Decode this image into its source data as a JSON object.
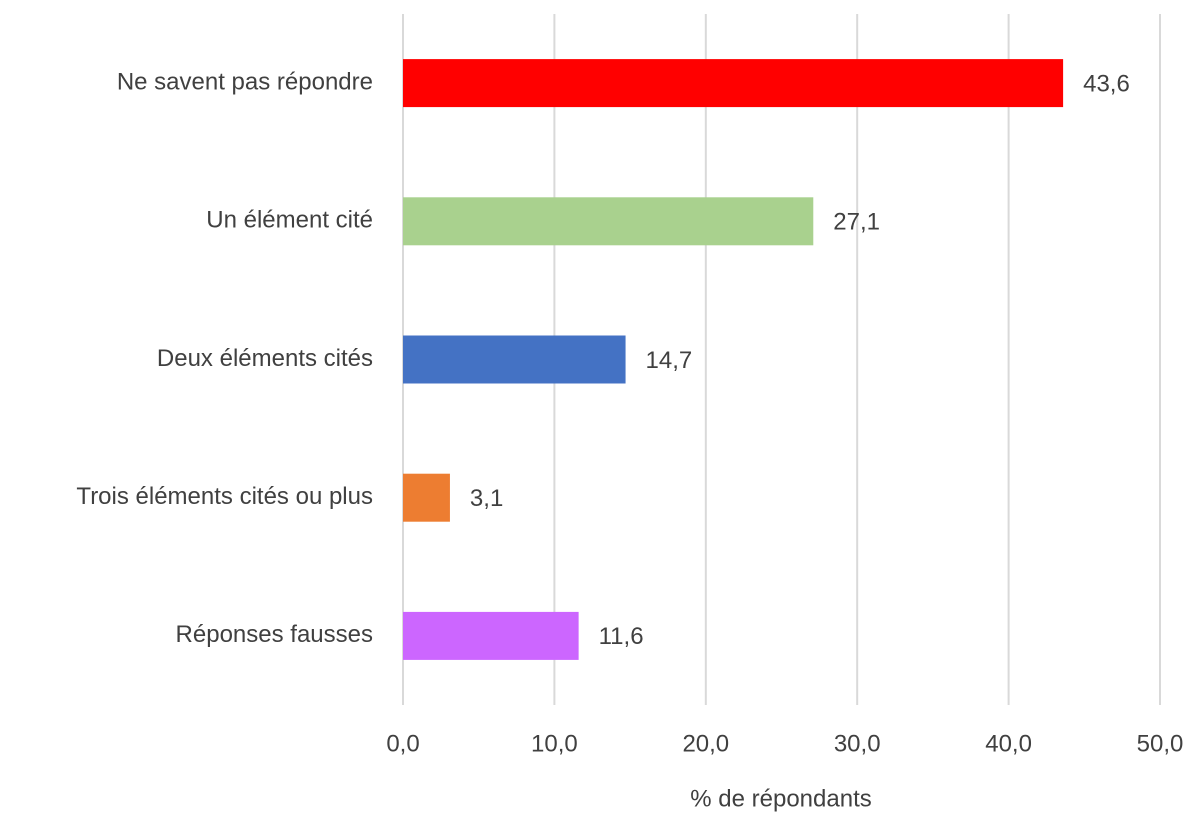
{
  "chart_data": {
    "type": "bar",
    "orientation": "horizontal",
    "categories": [
      "Ne savent pas répondre",
      "Un élément cité",
      "Deux éléments cités",
      "Trois éléments cités ou plus",
      "Réponses fausses"
    ],
    "values": [
      43.6,
      27.1,
      14.7,
      3.1,
      11.6
    ],
    "value_labels": [
      "43,6",
      "27,1",
      "14,7",
      "3,1",
      "11,6"
    ],
    "colors": [
      "#ff0000",
      "#a9d18e",
      "#4472c4",
      "#ed7d31",
      "#cc66ff"
    ],
    "xlabel": "% de répondants",
    "xlim": [
      0,
      50
    ],
    "xticks": [
      {
        "value": 0,
        "label": "0,0"
      },
      {
        "value": 10,
        "label": "10,0"
      },
      {
        "value": 20,
        "label": "20,0"
      },
      {
        "value": 30,
        "label": "30,0"
      },
      {
        "value": 40,
        "label": "40,0"
      },
      {
        "value": 50,
        "label": "50,0"
      }
    ],
    "grid": true
  }
}
